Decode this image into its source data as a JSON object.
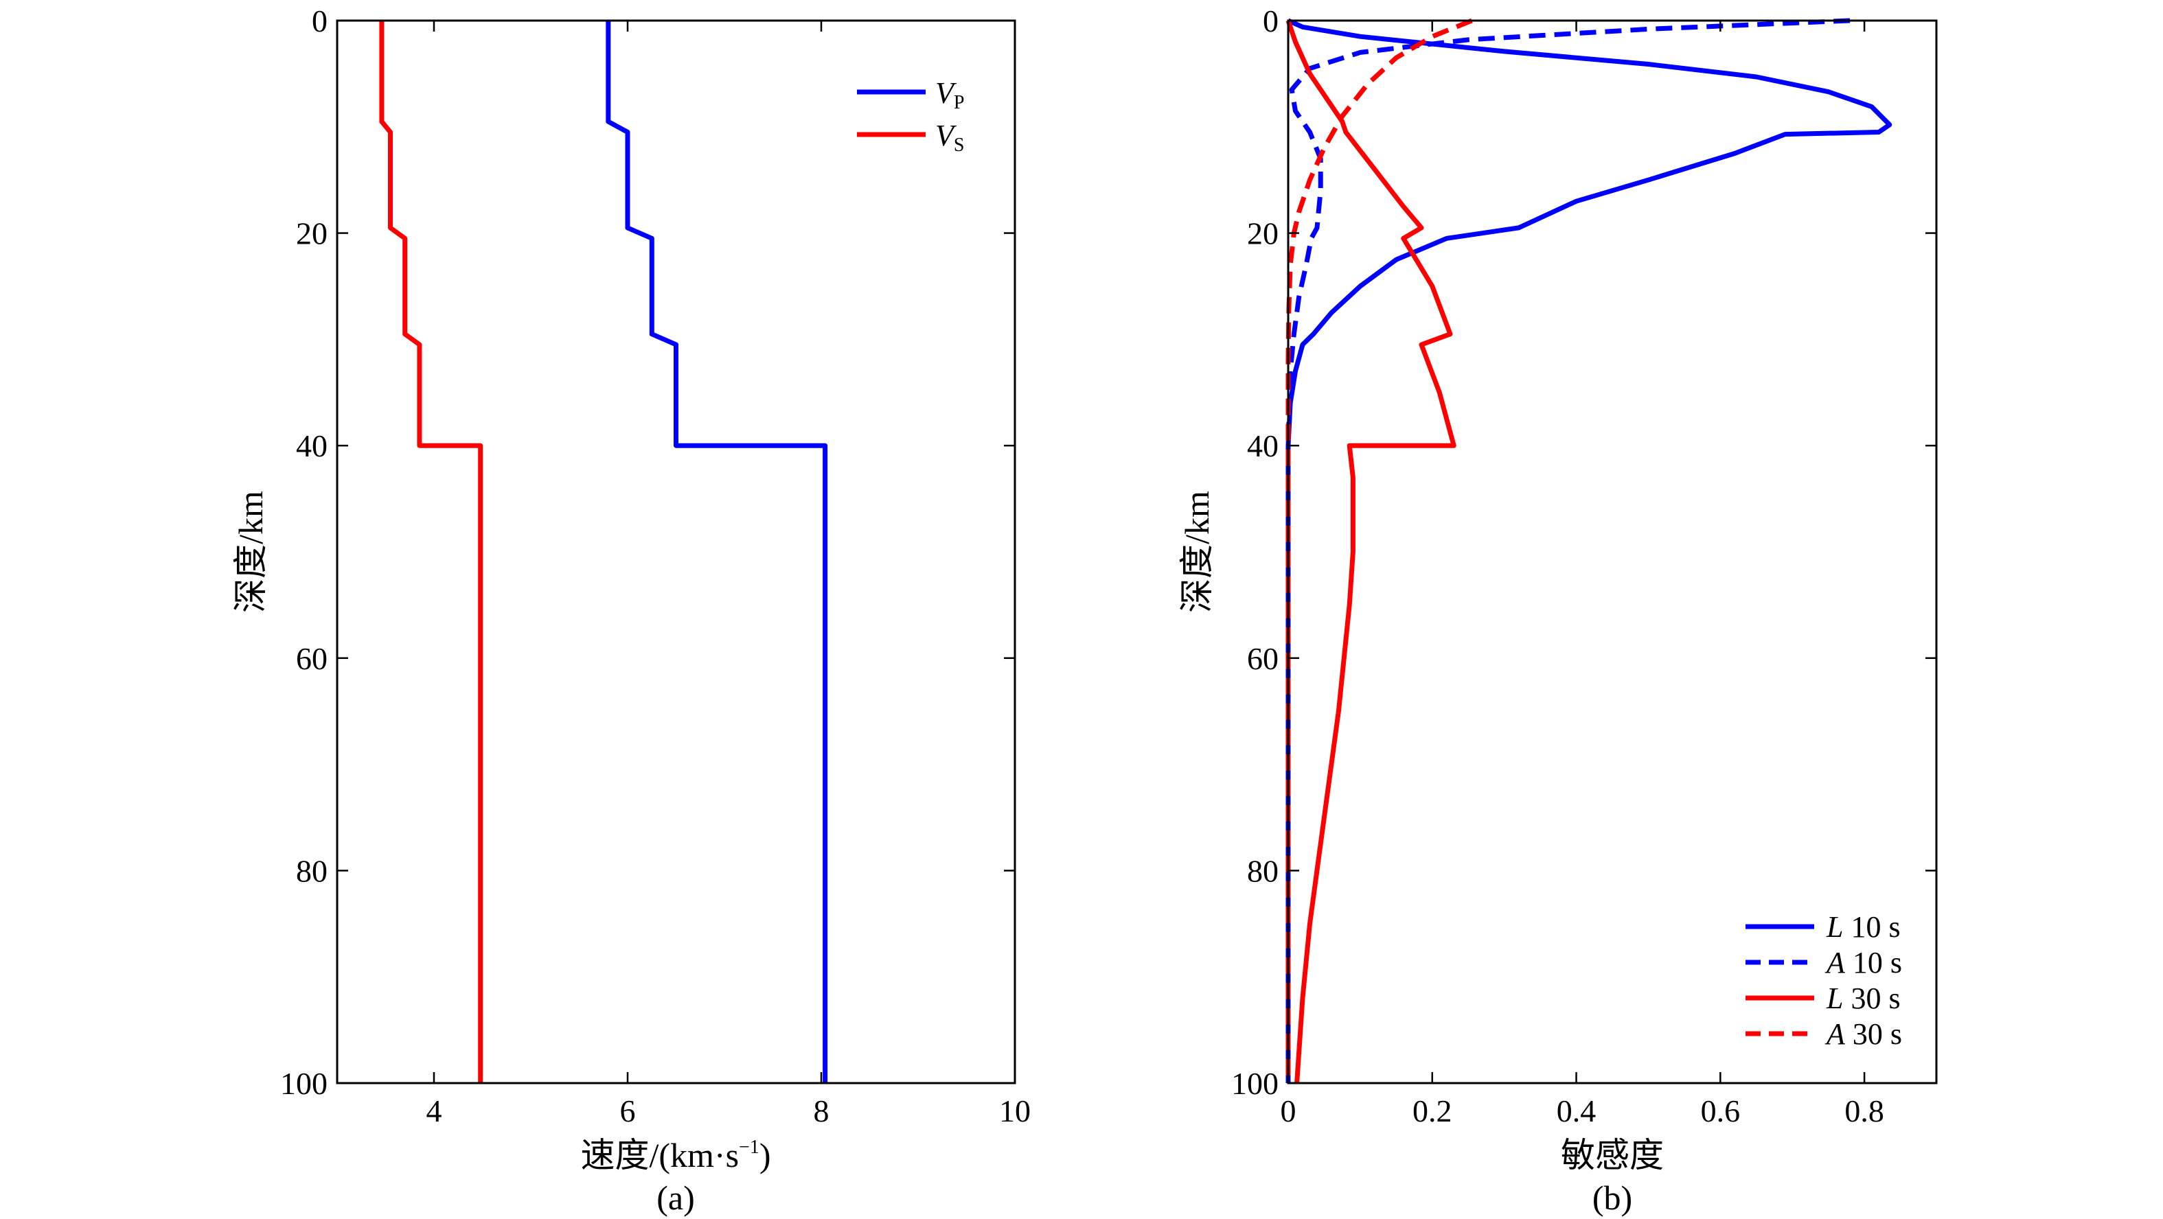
{
  "chart_data": [
    {
      "type": "line",
      "panel_label": "(a)",
      "xlabel": "速度/(km·s⁻¹)",
      "xlabel_main": "速度/(km·s",
      "xlabel_sup": "−1",
      "xlabel_close": ")",
      "ylabel": "深度/km",
      "xlim": [
        3,
        10
      ],
      "ylim": [
        0,
        100
      ],
      "y_inverted": true,
      "xticks": [
        "4",
        "6",
        "8",
        "10"
      ],
      "yticks": [
        "0",
        "20",
        "40",
        "60",
        "80",
        "100"
      ],
      "legend_position": "top-right",
      "series": [
        {
          "name": "VP",
          "name_main": "V",
          "name_sub": "P",
          "color": "#0000ff",
          "style": "solid",
          "x": [
            5.8,
            5.8,
            6.0,
            6.0,
            6.25,
            6.25,
            6.5,
            6.5,
            8.04,
            8.04
          ],
          "y": [
            0,
            9.5,
            10.5,
            19.5,
            20.5,
            29.5,
            30.5,
            40,
            40,
            100
          ]
        },
        {
          "name": "VS",
          "name_main": "V",
          "name_sub": "S",
          "color": "#ff0000",
          "style": "solid",
          "x": [
            3.46,
            3.46,
            3.55,
            3.55,
            3.7,
            3.7,
            3.85,
            3.85,
            4.48,
            4.48
          ],
          "y": [
            0,
            9.5,
            10.5,
            19.5,
            20.5,
            29.5,
            30.5,
            40,
            40,
            100
          ]
        }
      ]
    },
    {
      "type": "line",
      "panel_label": "(b)",
      "xlabel": "敏感度",
      "ylabel": "深度/km",
      "xlim": [
        0,
        0.9
      ],
      "ylim": [
        0,
        100
      ],
      "y_inverted": true,
      "xticks": [
        "0",
        "0.2",
        "0.4",
        "0.6",
        "0.8"
      ],
      "yticks": [
        "0",
        "20",
        "40",
        "60",
        "80",
        "100"
      ],
      "legend_position": "bottom-right",
      "series": [
        {
          "name": "L 10 s",
          "name_italic": "L",
          "name_rest": " 10 s",
          "color": "#0000ff",
          "style": "solid",
          "x": [
            0,
            0.02,
            0.1,
            0.3,
            0.5,
            0.65,
            0.75,
            0.81,
            0.835,
            0.82,
            0.69,
            0.62,
            0.5,
            0.4,
            0.32,
            0.22,
            0.15,
            0.1,
            0.06,
            0.035,
            0.02,
            0.01,
            0.003,
            0,
            0
          ],
          "y": [
            0,
            0.6,
            1.5,
            2.9,
            4.1,
            5.3,
            6.7,
            8.1,
            9.8,
            10.5,
            10.7,
            12.5,
            15,
            17,
            19.5,
            20.5,
            22.5,
            25,
            27.5,
            29.5,
            30.5,
            33,
            36,
            40,
            100
          ]
        },
        {
          "name": "A 10 s",
          "name_italic": "A",
          "name_rest": " 10 s",
          "color": "#0000ff",
          "style": "dashed",
          "x": [
            0.78,
            0.5,
            0.25,
            0.1,
            0.03,
            0.005,
            0.01,
            0.03,
            0.045,
            0.045,
            0.04,
            0.032,
            0.025,
            0.015,
            0.008,
            0.003,
            0,
            0
          ],
          "y": [
            0,
            0.8,
            1.8,
            3.0,
            4.5,
            6.5,
            8.5,
            10.5,
            13,
            16,
            19.5,
            20.5,
            23,
            26,
            29.5,
            33,
            40,
            100
          ]
        },
        {
          "name": "L 30 s",
          "name_italic": "L",
          "name_rest": " 30 s",
          "color": "#ff0000",
          "style": "solid",
          "x": [
            0,
            0.01,
            0.03,
            0.055,
            0.075,
            0.08,
            0.12,
            0.16,
            0.185,
            0.16,
            0.2,
            0.225,
            0.185,
            0.21,
            0.23,
            0.085,
            0.09,
            0.09,
            0.085,
            0.07,
            0.05,
            0.03,
            0.02,
            0.012
          ],
          "y": [
            0,
            2,
            5,
            7.5,
            9.5,
            10.5,
            14,
            17.5,
            19.5,
            20.5,
            25,
            29.5,
            30.5,
            35,
            40,
            40,
            43,
            50,
            55,
            65,
            75,
            85,
            92,
            100
          ]
        },
        {
          "name": "A 30 s",
          "name_italic": "A",
          "name_rest": " 30 s",
          "color": "#ff0000",
          "style": "dashed",
          "x": [
            0.255,
            0.2,
            0.15,
            0.11,
            0.075,
            0.05,
            0.03,
            0.015,
            0.008,
            0.003,
            0.001,
            0,
            0
          ],
          "y": [
            0,
            1.5,
            3.5,
            6,
            9,
            12,
            15,
            18,
            20,
            23,
            27,
            32,
            100
          ]
        }
      ]
    }
  ]
}
